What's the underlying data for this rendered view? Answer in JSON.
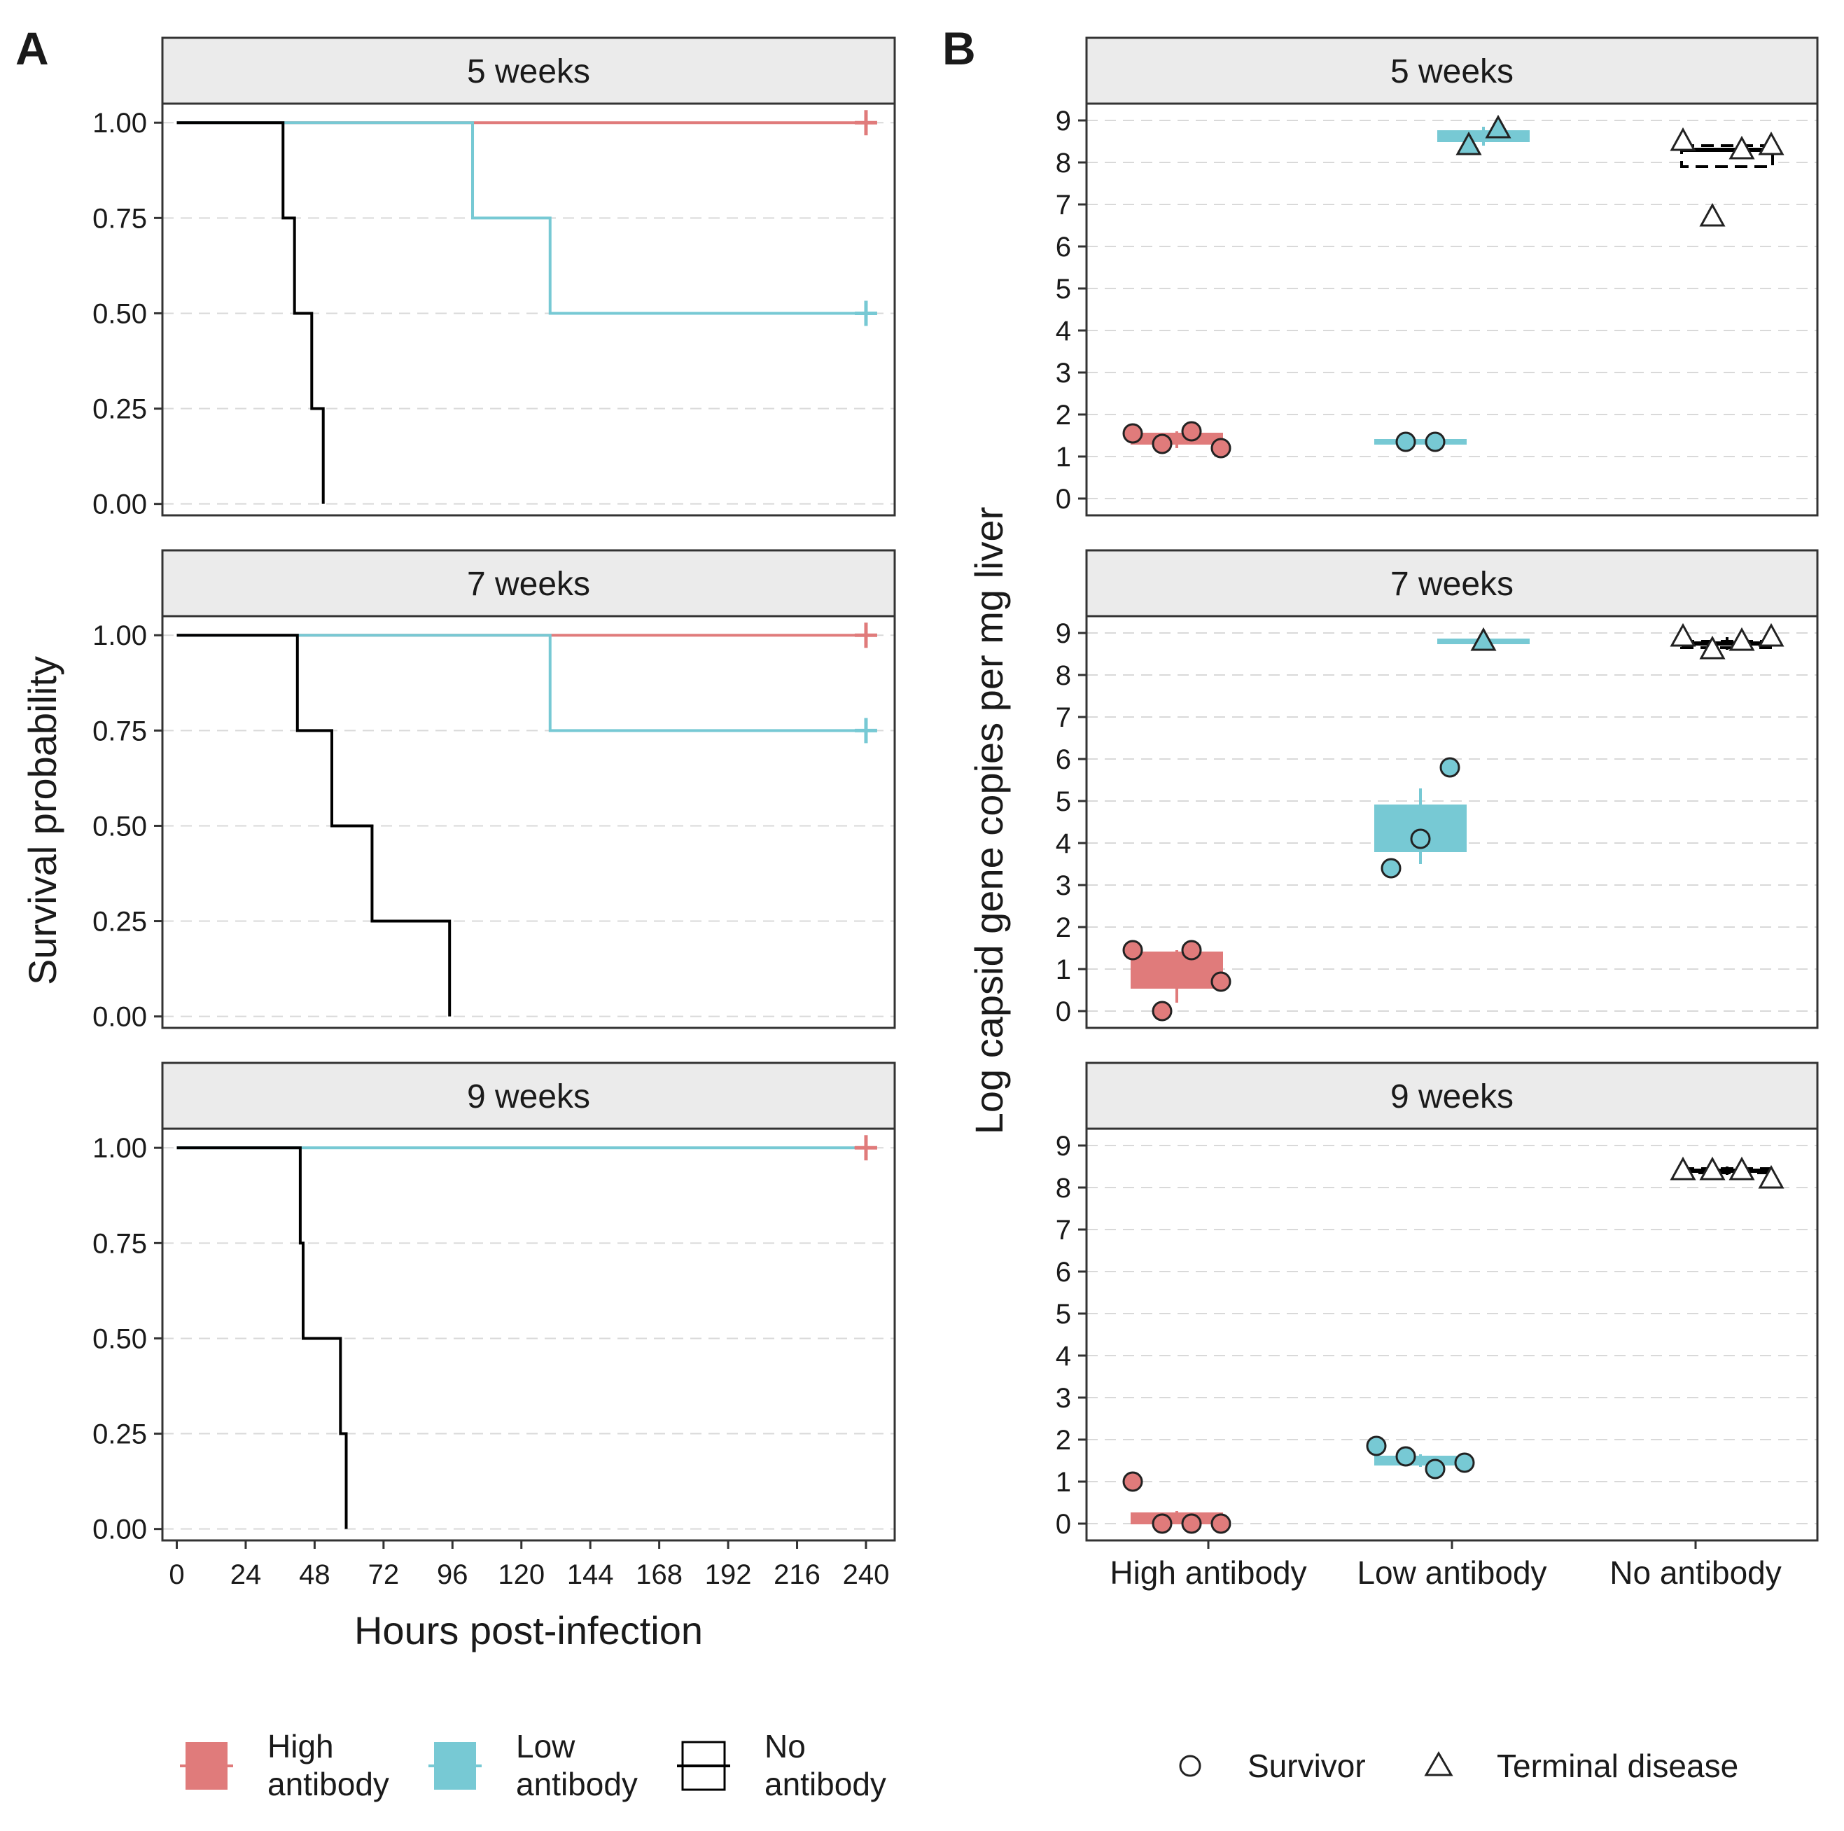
{
  "panel_labels": [
    "A",
    "B"
  ],
  "colors": {
    "high": "#e07b7b",
    "low": "#77c9d4",
    "none": "#000000",
    "strip_fill": "#ebebeb",
    "grid": "#d9d9d9"
  },
  "chart_data": [
    {
      "type": "line",
      "subtype": "kaplan-meier step",
      "panel": "A",
      "xlabel": "Hours post-infection",
      "ylabel": "Survival probability",
      "xlim": [
        -5,
        250
      ],
      "ylim": [
        -0.03,
        1.05
      ],
      "x_ticks": [
        0,
        24,
        48,
        72,
        96,
        120,
        144,
        168,
        192,
        216,
        240
      ],
      "x_tick_labels": [
        "0",
        "24",
        "48",
        "72",
        "96",
        "120",
        "144",
        "168",
        "192",
        "216",
        "240"
      ],
      "y_ticks": [
        0,
        0.25,
        0.5,
        0.75,
        1
      ],
      "y_tick_labels": [
        "0.00",
        "0.25",
        "0.50",
        "0.75",
        "1.00"
      ],
      "facets": [
        {
          "title": "5 weeks",
          "series": [
            {
              "name": "High antibody",
              "color_key": "high",
              "x": [
                0,
                240
              ],
              "y": [
                1,
                1
              ],
              "censor": [
                240,
                1
              ]
            },
            {
              "name": "Low antibody",
              "color_key": "low",
              "x": [
                0,
                103,
                103,
                130,
                130,
                240
              ],
              "y": [
                1,
                1,
                0.75,
                0.75,
                0.5,
                0.5
              ],
              "censor": [
                240,
                0.5
              ]
            },
            {
              "name": "No antibody",
              "color_key": "none",
              "x": [
                0,
                37,
                37,
                41,
                41,
                47,
                47,
                51,
                51
              ],
              "y": [
                1,
                1,
                0.75,
                0.75,
                0.5,
                0.5,
                0.25,
                0.25,
                0
              ]
            }
          ]
        },
        {
          "title": "7 weeks",
          "series": [
            {
              "name": "High antibody",
              "color_key": "high",
              "x": [
                0,
                240
              ],
              "y": [
                1,
                1
              ],
              "censor": [
                240,
                1
              ]
            },
            {
              "name": "Low antibody",
              "color_key": "low",
              "x": [
                0,
                130,
                130,
                240
              ],
              "y": [
                1,
                1,
                0.75,
                0.75
              ],
              "censor": [
                240,
                0.75
              ]
            },
            {
              "name": "No antibody",
              "color_key": "none",
              "x": [
                0,
                42,
                42,
                54,
                54,
                68,
                68,
                95,
                95
              ],
              "y": [
                1,
                1,
                0.75,
                0.75,
                0.5,
                0.5,
                0.25,
                0.25,
                0
              ]
            }
          ]
        },
        {
          "title": "9 weeks",
          "series": [
            {
              "name": "Low antibody",
              "color_key": "low",
              "x": [
                0,
                240
              ],
              "y": [
                1,
                1
              ]
            },
            {
              "name": "High antibody",
              "color_key": "high",
              "x": [
                236,
                240
              ],
              "y": [
                1,
                1
              ],
              "censor": [
                240,
                1
              ]
            },
            {
              "name": "No antibody",
              "color_key": "none",
              "x": [
                0,
                43,
                43,
                44,
                44,
                57,
                57,
                59,
                59
              ],
              "y": [
                1,
                1,
                0.75,
                0.75,
                0.5,
                0.5,
                0.25,
                0.25,
                0
              ]
            }
          ]
        }
      ],
      "legend": {
        "position": "bottom",
        "entries": [
          {
            "label_lines": [
              "High",
              "antibody"
            ],
            "color_key": "high"
          },
          {
            "label_lines": [
              "Low",
              "antibody"
            ],
            "color_key": "low"
          },
          {
            "label_lines": [
              "No",
              "antibody"
            ],
            "color_key": "none"
          }
        ]
      }
    },
    {
      "type": "scatter",
      "subtype": "box plot with points",
      "panel": "B",
      "ylabel": "Log capsid gene copies per mg liver",
      "categories": [
        "High antibody",
        "Low antibody",
        "No antibody"
      ],
      "ylim": [
        -0.4,
        9.4
      ],
      "y_ticks": [
        0,
        1,
        2,
        3,
        4,
        5,
        6,
        7,
        8,
        9
      ],
      "y_tick_labels": [
        "0",
        "1",
        "2",
        "3",
        "4",
        "5",
        "6",
        "7",
        "8",
        "9"
      ],
      "facets": [
        {
          "title": "5 weeks",
          "boxes": [
            {
              "group": "High antibody",
              "outcome": "Survivor",
              "color_key": "high",
              "q1": 1.3,
              "median": 1.4,
              "q3": 1.55,
              "lo": 1.2,
              "hi": 1.6
            },
            {
              "group": "Low antibody",
              "outcome": "Survivor",
              "color_key": "low",
              "q1": 1.3,
              "median": 1.35,
              "q3": 1.4,
              "lo": 1.3,
              "hi": 1.4
            },
            {
              "group": "Low antibody",
              "outcome": "Terminal disease",
              "color_key": "low",
              "q1": 8.5,
              "median": 8.65,
              "q3": 8.75,
              "lo": 8.4,
              "hi": 8.85
            },
            {
              "group": "No antibody",
              "outcome": "Terminal disease",
              "color_key": "none",
              "q1": 7.9,
              "median": 8.3,
              "q3": 8.4,
              "lo": 7.9,
              "hi": 8.4
            }
          ],
          "points": [
            {
              "group": "High antibody",
              "outcome": "Survivor",
              "values": [
                1.55,
                1.3,
                1.6,
                1.2
              ]
            },
            {
              "group": "Low antibody",
              "outcome": "Survivor",
              "values": [
                1.35,
                1.35
              ]
            },
            {
              "group": "Low antibody",
              "outcome": "Terminal disease",
              "values": [
                8.4,
                8.8
              ]
            },
            {
              "group": "No antibody",
              "outcome": "Terminal disease",
              "values": [
                8.5,
                6.7,
                8.3,
                8.4
              ]
            }
          ]
        },
        {
          "title": "7 weeks",
          "boxes": [
            {
              "group": "High antibody",
              "outcome": "Survivor",
              "color_key": "high",
              "q1": 0.55,
              "median": 0.95,
              "q3": 1.4,
              "lo": 0.2,
              "hi": 1.45
            },
            {
              "group": "Low antibody",
              "outcome": "Survivor",
              "color_key": "low",
              "q1": 3.8,
              "median": 4.4,
              "q3": 4.9,
              "lo": 3.5,
              "hi": 5.3
            },
            {
              "group": "Low antibody",
              "outcome": "Terminal disease",
              "color_key": "low",
              "q1": 8.75,
              "median": 8.8,
              "q3": 8.85,
              "lo": 8.75,
              "hi": 8.85
            },
            {
              "group": "No antibody",
              "outcome": "Terminal disease",
              "color_key": "none",
              "q1": 8.65,
              "median": 8.75,
              "q3": 8.8,
              "lo": 8.6,
              "hi": 8.9
            }
          ],
          "points": [
            {
              "group": "High antibody",
              "outcome": "Survivor",
              "values": [
                1.45,
                0,
                1.45,
                0.7
              ]
            },
            {
              "group": "Low antibody",
              "outcome": "Survivor",
              "values": [
                3.4,
                4.1,
                5.8
              ]
            },
            {
              "group": "Low antibody",
              "outcome": "Terminal disease",
              "values": [
                8.8
              ]
            },
            {
              "group": "No antibody",
              "outcome": "Terminal disease",
              "values": [
                8.9,
                8.6,
                8.8,
                8.9
              ]
            }
          ]
        },
        {
          "title": "9 weeks",
          "boxes": [
            {
              "group": "High antibody",
              "outcome": "Survivor",
              "color_key": "high",
              "q1": 0,
              "median": 0.1,
              "q3": 0.25,
              "lo": 0,
              "hi": 0.3
            },
            {
              "group": "Low antibody",
              "outcome": "Survivor",
              "color_key": "low",
              "q1": 1.4,
              "median": 1.5,
              "q3": 1.6,
              "lo": 1.35,
              "hi": 1.65
            },
            {
              "group": "No antibody",
              "outcome": "Terminal disease",
              "color_key": "none",
              "q1": 8.35,
              "median": 8.4,
              "q3": 8.45,
              "lo": 8.3,
              "hi": 8.5
            }
          ],
          "points": [
            {
              "group": "High antibody",
              "outcome": "Survivor",
              "values": [
                1.0,
                0,
                0,
                0
              ]
            },
            {
              "group": "Low antibody",
              "outcome": "Survivor",
              "values": [
                1.85,
                1.6,
                1.3,
                1.45
              ]
            },
            {
              "group": "No antibody",
              "outcome": "Terminal disease",
              "values": [
                8.4,
                8.4,
                8.4,
                8.2
              ]
            }
          ]
        }
      ],
      "legend": {
        "position": "bottom",
        "entries": [
          {
            "label": "Survivor",
            "shape": "circle"
          },
          {
            "label": "Terminal disease",
            "shape": "triangle"
          }
        ]
      }
    }
  ]
}
